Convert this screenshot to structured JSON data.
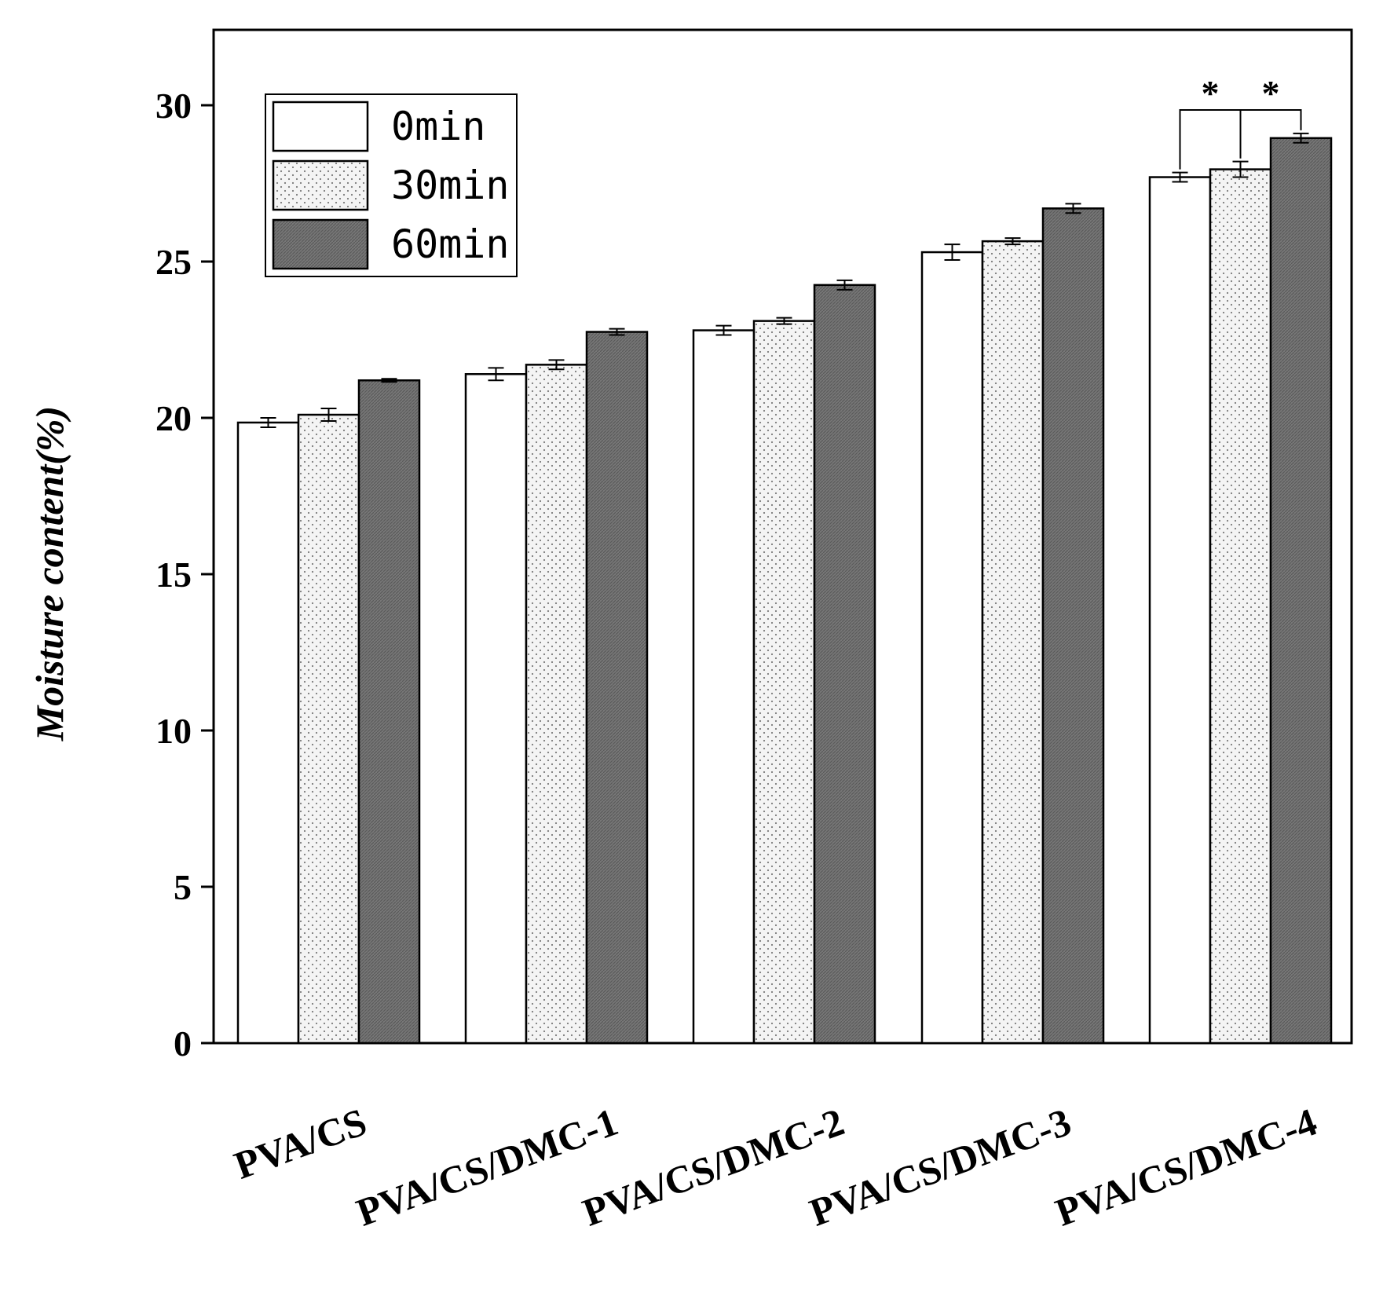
{
  "chart_data": {
    "type": "bar",
    "title": "",
    "xlabel": "",
    "ylabel": "Moisture content(%)",
    "ylim": [
      0,
      32.5
    ],
    "yticks": [
      0,
      5,
      10,
      15,
      20,
      25,
      30
    ],
    "grid": false,
    "legend_position": "top-left",
    "categories": [
      "PVA/CS",
      "PVA/CS/DMC-1",
      "PVA/CS/DMC-2",
      "PVA/CS/DMC-3",
      "PVA/CS/DMC-4"
    ],
    "series": [
      {
        "name": "0min",
        "pattern": "white",
        "values": [
          19.85,
          21.4,
          22.8,
          25.3,
          27.7
        ],
        "errors": [
          0.15,
          0.2,
          0.15,
          0.25,
          0.15
        ]
      },
      {
        "name": "30min",
        "pattern": "dotted",
        "values": [
          20.1,
          21.7,
          23.1,
          25.65,
          27.95
        ],
        "errors": [
          0.2,
          0.15,
          0.1,
          0.1,
          0.25
        ]
      },
      {
        "name": "60min",
        "pattern": "dark",
        "values": [
          21.2,
          22.75,
          24.25,
          26.7,
          28.95
        ],
        "errors": [
          0.05,
          0.1,
          0.15,
          0.15,
          0.15
        ]
      }
    ],
    "annotations": [
      {
        "text": "*",
        "between": [
          "0min",
          "30min"
        ],
        "category": "PVA/CS/DMC-4"
      },
      {
        "text": "*",
        "between": [
          "30min",
          "60min"
        ],
        "category": "PVA/CS/DMC-4"
      }
    ],
    "colors": {
      "white": "#ffffff",
      "dotted_bg": "#f4f4f4",
      "dotted_dot": "#7a7a7a",
      "dark": "#757575",
      "dark_stripe": "#5e5e5e",
      "axis": "#000000"
    }
  }
}
